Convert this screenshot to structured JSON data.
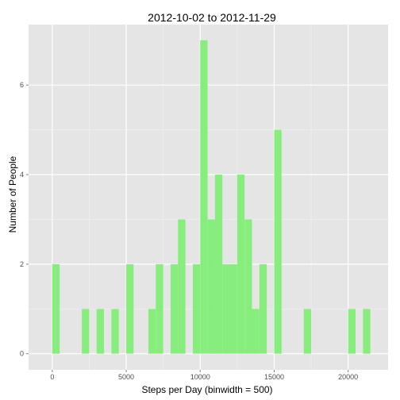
{
  "chart_data": {
    "type": "bar",
    "title": "2012-10-02  to  2012-11-29",
    "xlabel": "Steps per Day (binwidth = 500)",
    "ylabel": "Number of People",
    "binwidth": 500,
    "xlim": [
      -1600,
      22700
    ],
    "ylim": [
      -0.36,
      7.35
    ],
    "x_ticks": [
      0,
      5000,
      10000,
      15000,
      20000
    ],
    "y_ticks": [
      0,
      2,
      4,
      6
    ],
    "grid": true,
    "colors": {
      "panel": "#e5e5e5",
      "grid": "#ffffff",
      "bar": "#87ee7e"
    },
    "bins": [
      {
        "x0": 0,
        "x1": 500,
        "count": 2
      },
      {
        "x0": 2000,
        "x1": 2500,
        "count": 1
      },
      {
        "x0": 3000,
        "x1": 3500,
        "count": 1
      },
      {
        "x0": 4000,
        "x1": 4500,
        "count": 1
      },
      {
        "x0": 5000,
        "x1": 5500,
        "count": 2
      },
      {
        "x0": 6500,
        "x1": 7000,
        "count": 1
      },
      {
        "x0": 7000,
        "x1": 7500,
        "count": 2
      },
      {
        "x0": 8000,
        "x1": 8500,
        "count": 2
      },
      {
        "x0": 8500,
        "x1": 9000,
        "count": 3
      },
      {
        "x0": 9500,
        "x1": 10000,
        "count": 2
      },
      {
        "x0": 10000,
        "x1": 10500,
        "count": 7
      },
      {
        "x0": 10500,
        "x1": 11000,
        "count": 3
      },
      {
        "x0": 11000,
        "x1": 11500,
        "count": 4
      },
      {
        "x0": 11500,
        "x1": 12000,
        "count": 2
      },
      {
        "x0": 12000,
        "x1": 12500,
        "count": 2
      },
      {
        "x0": 12500,
        "x1": 13000,
        "count": 4
      },
      {
        "x0": 13000,
        "x1": 13500,
        "count": 3
      },
      {
        "x0": 13500,
        "x1": 14000,
        "count": 1
      },
      {
        "x0": 14000,
        "x1": 14500,
        "count": 2
      },
      {
        "x0": 15000,
        "x1": 15500,
        "count": 5
      },
      {
        "x0": 17000,
        "x1": 17500,
        "count": 1
      },
      {
        "x0": 20000,
        "x1": 20500,
        "count": 1
      },
      {
        "x0": 21000,
        "x1": 21500,
        "count": 1
      }
    ]
  }
}
